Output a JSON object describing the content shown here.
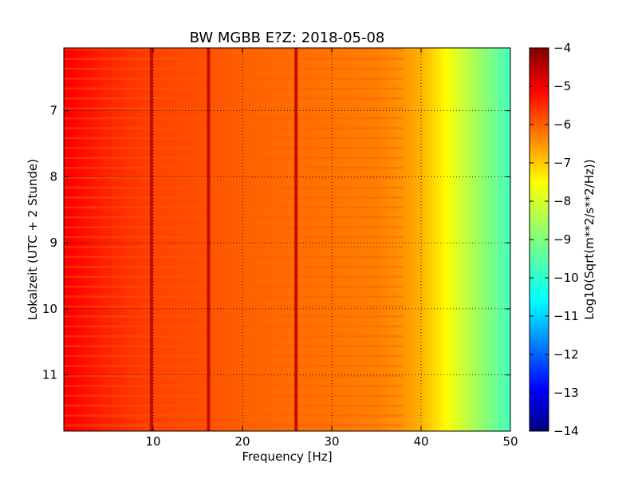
{
  "chart_data": {
    "type": "heatmap",
    "title": "BW MGBB E?Z: 2018-05-08",
    "xlabel": "Frequency [Hz]",
    "ylabel": "Lokalzeit (UTC + 2 Stunde)",
    "xlim": [
      0,
      50
    ],
    "ylim": [
      11.85,
      6.05
    ],
    "x_ticks": [
      10,
      20,
      30,
      40,
      50
    ],
    "y_ticks": [
      7,
      8,
      9,
      10,
      11
    ],
    "grid": true,
    "colormap": "jet",
    "colorbar": {
      "label": "Log10(Sqrt(m**2/s**2/Hz))",
      "range": [
        -14,
        -4
      ],
      "ticks": [
        -4,
        -5,
        -6,
        -7,
        -8,
        -9,
        -10,
        -11,
        -12,
        -13,
        -14
      ]
    },
    "spectral_profile": {
      "frequency_hz": [
        0,
        5,
        10,
        15,
        20,
        25,
        30,
        35,
        38,
        40,
        42,
        44,
        46,
        48,
        50
      ],
      "log10_amplitude": [
        -5.2,
        -5.6,
        -5.9,
        -6.0,
        -6.2,
        -6.3,
        -6.4,
        -6.5,
        -6.7,
        -7.0,
        -7.5,
        -8.1,
        -8.6,
        -9.1,
        -9.6
      ]
    },
    "spectral_lines_hz": [
      9.8,
      16.2,
      26
    ]
  }
}
